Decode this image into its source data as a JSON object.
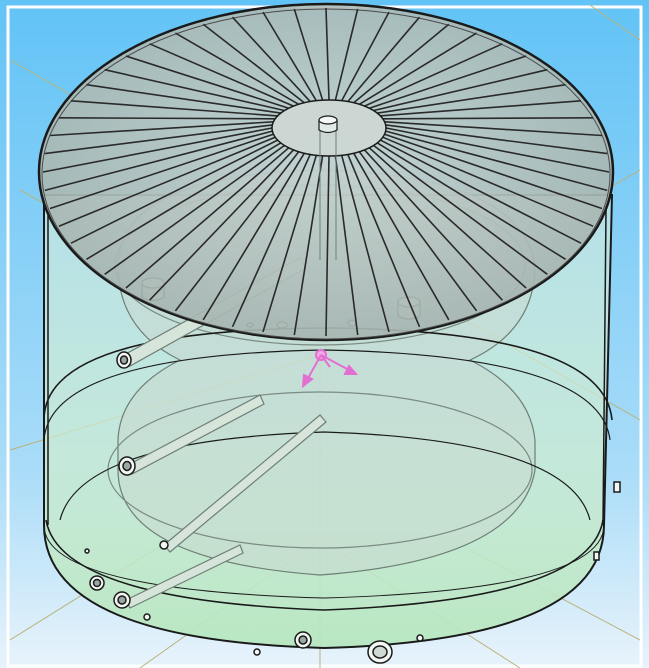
{
  "colors": {
    "background_top": "#62c3f6",
    "background_bottom": "#e8f3fb",
    "tank_fill": "#d6ecd9",
    "tank_bottom_fill": "#bfe8c6",
    "lid_fill": "#aab7b4",
    "outline": "#1a1a1a",
    "inner_body": "#c9d9cf",
    "axis_line": "#b9b37a",
    "triad_color": "#e36fd2"
  },
  "icons": {
    "coordinate_triad": "xyz-axis-triad-icon"
  }
}
